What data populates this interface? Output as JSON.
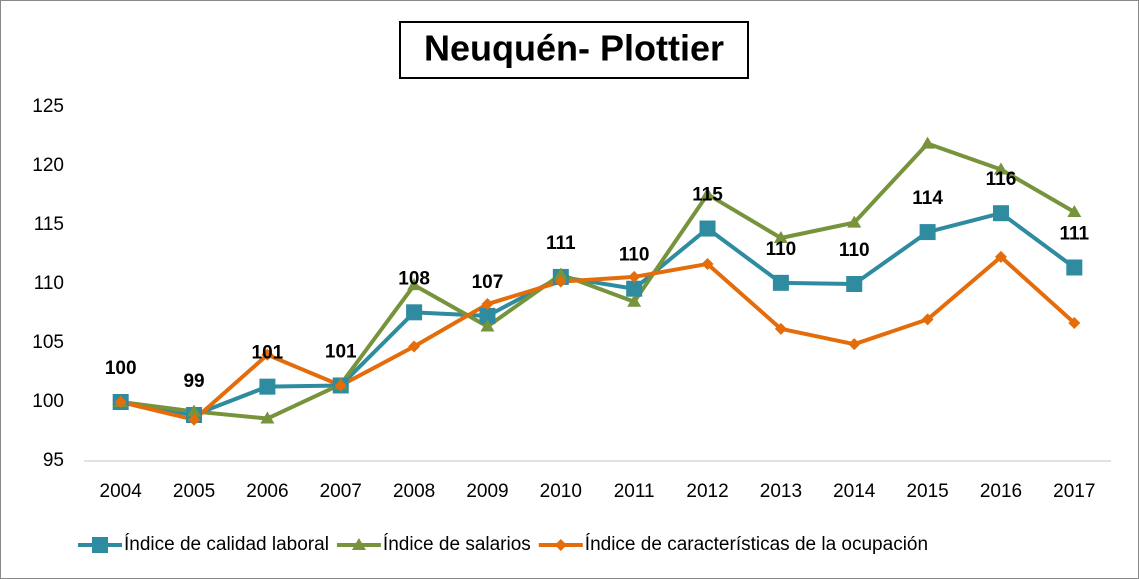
{
  "chart_data": {
    "type": "line",
    "title": "Neuquén- Plottier",
    "categories": [
      "2004",
      "2005",
      "2006",
      "2007",
      "2008",
      "2009",
      "2010",
      "2011",
      "2012",
      "2013",
      "2014",
      "2015",
      "2016",
      "2017"
    ],
    "series": [
      {
        "name": "Índice de calidad laboral",
        "color": "#2e8ba0",
        "marker": "square",
        "values": [
          100,
          98.9,
          101.3,
          101.4,
          107.6,
          107.3,
          110.6,
          109.6,
          114.7,
          110.1,
          110.0,
          114.4,
          116.0,
          111.4
        ],
        "value_labels": [
          "100",
          "99",
          "101",
          "101",
          "108",
          "107",
          "111",
          "110",
          "115",
          "110",
          "110",
          "114",
          "116",
          "111"
        ]
      },
      {
        "name": "Índice de salarios",
        "color": "#77933c",
        "marker": "triangle",
        "values": [
          100,
          99.2,
          98.6,
          101.5,
          109.9,
          106.4,
          110.8,
          108.5,
          117.6,
          113.9,
          115.2,
          121.9,
          119.7,
          116.1
        ]
      },
      {
        "name": "Índice de características de la ocupación",
        "color": "#e46c0a",
        "marker": "diamond",
        "values": [
          100,
          98.5,
          104.0,
          101.4,
          104.7,
          108.3,
          110.2,
          110.6,
          111.7,
          106.2,
          104.9,
          107.0,
          112.3,
          106.7
        ]
      }
    ],
    "ylim": [
      95,
      125
    ],
    "yticks": [
      95,
      100,
      105,
      110,
      115,
      120,
      125
    ],
    "grid": false,
    "legend": "bottom"
  }
}
